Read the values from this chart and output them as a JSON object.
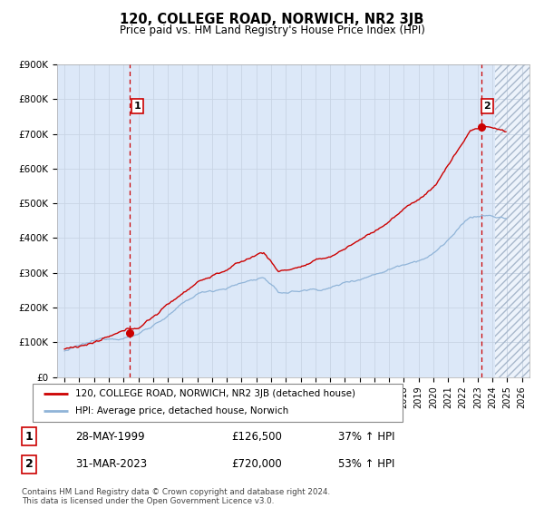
{
  "title": "120, COLLEGE ROAD, NORWICH, NR2 3JB",
  "subtitle": "Price paid vs. HM Land Registry's House Price Index (HPI)",
  "ylim": [
    0,
    900000
  ],
  "yticks": [
    0,
    100000,
    200000,
    300000,
    400000,
    500000,
    600000,
    700000,
    800000,
    900000
  ],
  "ytick_labels": [
    "£0",
    "£100K",
    "£200K",
    "£300K",
    "£400K",
    "£500K",
    "£600K",
    "£700K",
    "£800K",
    "£900K"
  ],
  "sale1_date_num": 1999.41,
  "sale1_price": 126500,
  "sale2_date_num": 2023.25,
  "sale2_price": 720000,
  "hpi_line_color": "#90b4d8",
  "price_line_color": "#cc0000",
  "vline_color": "#cc0000",
  "grid_color": "#c8d4e4",
  "bg_color": "#dce8f8",
  "legend_label1": "120, COLLEGE ROAD, NORWICH, NR2 3JB (detached house)",
  "legend_label2": "HPI: Average price, detached house, Norwich",
  "table_row1": [
    "1",
    "28-MAY-1999",
    "£126,500",
    "37% ↑ HPI"
  ],
  "table_row2": [
    "2",
    "31-MAR-2023",
    "£720,000",
    "53% ↑ HPI"
  ],
  "footnote": "Contains HM Land Registry data © Crown copyright and database right 2024.\nThis data is licensed under the Open Government Licence v3.0.",
  "xmin": 1994.5,
  "xmax": 2026.5,
  "hatch_xmin": 2024.17,
  "hatch_xmax": 2026.5,
  "n_months": 360
}
